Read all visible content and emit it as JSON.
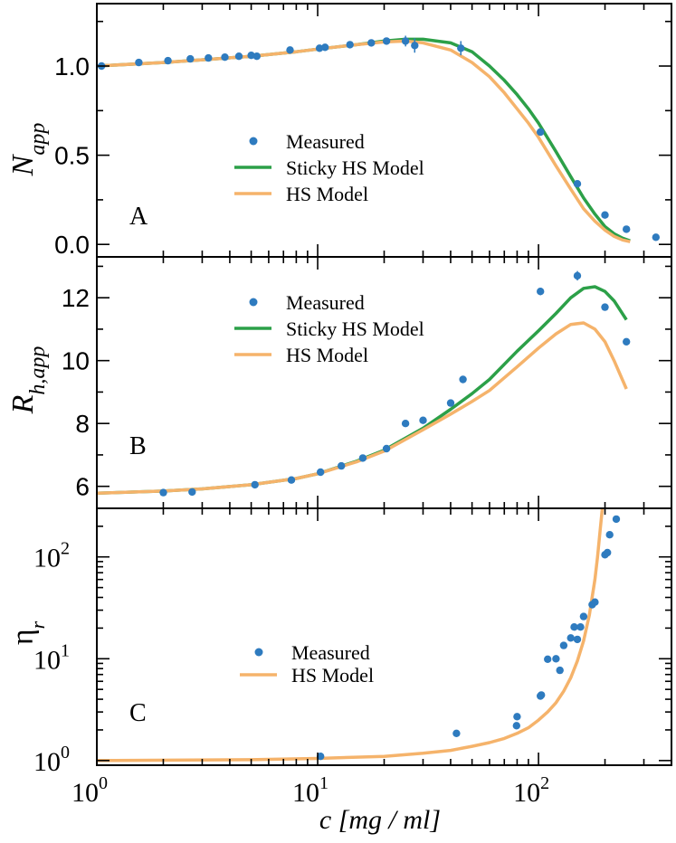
{
  "colors": {
    "measured": "#2e7bbf",
    "sticky": "#2ca048",
    "hs": "#f5b36b",
    "axis": "#000000"
  },
  "x_axis": {
    "label": "c [mg / ml]",
    "scale": "log",
    "range": [
      1,
      400
    ],
    "tick_labels": [
      {
        "base": "10",
        "exp": "0",
        "value": 1
      },
      {
        "base": "10",
        "exp": "1",
        "value": 10
      },
      {
        "base": "10",
        "exp": "2",
        "value": 100
      }
    ]
  },
  "chart_data": [
    {
      "type": "scatter",
      "panel_letter": "A",
      "ylabel": {
        "main": "N",
        "sub": "app"
      },
      "yscale": "linear",
      "ylim": [
        -0.07,
        1.35
      ],
      "yticks": [
        {
          "label": "0.0",
          "value": 0
        },
        {
          "label": "0.5",
          "value": 0.5
        },
        {
          "label": "1.0",
          "value": 1.0
        }
      ],
      "legend": {
        "position": "center",
        "items": [
          "Measured",
          "Sticky HS Model",
          "HS Model"
        ]
      },
      "series": [
        {
          "name": "Measured",
          "kind": "points",
          "x": [
            1.05,
            1.55,
            2.1,
            2.65,
            3.2,
            3.8,
            4.4,
            5.0,
            5.3,
            7.5,
            10.2,
            10.8,
            14.0,
            17.5,
            20.5,
            25.0,
            27.5,
            44.5,
            102.0,
            150.0,
            200.0,
            250.0,
            340.0
          ],
          "y": [
            1.0,
            1.02,
            1.03,
            1.04,
            1.045,
            1.05,
            1.055,
            1.06,
            1.055,
            1.09,
            1.1,
            1.105,
            1.12,
            1.13,
            1.14,
            1.14,
            1.115,
            1.1,
            0.63,
            0.34,
            0.165,
            0.085,
            0.04
          ],
          "yerr": [
            0,
            0,
            0,
            0,
            0,
            0,
            0,
            0,
            0,
            0,
            0,
            0,
            0,
            0,
            0,
            0.03,
            0.04,
            0.04,
            0.02,
            0.01,
            0,
            0,
            0
          ]
        },
        {
          "name": "Sticky HS Model",
          "kind": "line",
          "x": [
            1,
            2,
            3,
            5,
            8,
            10,
            15,
            20,
            25,
            30,
            40,
            50,
            60,
            70,
            80,
            90,
            100,
            120,
            140,
            160,
            180,
            200,
            220,
            240,
            260
          ],
          "y": [
            1.0,
            1.02,
            1.035,
            1.055,
            1.08,
            1.095,
            1.12,
            1.14,
            1.15,
            1.15,
            1.13,
            1.08,
            1.0,
            0.92,
            0.84,
            0.76,
            0.68,
            0.52,
            0.38,
            0.26,
            0.17,
            0.1,
            0.06,
            0.035,
            0.02
          ]
        },
        {
          "name": "HS Model",
          "kind": "line",
          "x": [
            1,
            2,
            3,
            5,
            8,
            10,
            15,
            20,
            25,
            30,
            40,
            50,
            60,
            70,
            80,
            90,
            100,
            120,
            140,
            160,
            180,
            200,
            220,
            240,
            260
          ],
          "y": [
            1.0,
            1.02,
            1.035,
            1.055,
            1.08,
            1.095,
            1.12,
            1.135,
            1.14,
            1.13,
            1.09,
            1.02,
            0.94,
            0.85,
            0.76,
            0.68,
            0.6,
            0.44,
            0.31,
            0.2,
            0.13,
            0.08,
            0.045,
            0.025,
            0.015
          ]
        }
      ]
    },
    {
      "type": "scatter",
      "panel_letter": "B",
      "ylabel": {
        "main": "R",
        "sub": "h,app"
      },
      "yscale": "linear",
      "ylim": [
        5.3,
        13.3
      ],
      "yticks": [
        {
          "label": "6",
          "value": 6
        },
        {
          "label": "8",
          "value": 8
        },
        {
          "label": "10",
          "value": 10
        },
        {
          "label": "12",
          "value": 12
        }
      ],
      "legend": {
        "position": "upper-center",
        "items": [
          "Measured",
          "Sticky HS Model",
          "HS Model"
        ]
      },
      "series": [
        {
          "name": "Measured",
          "kind": "points",
          "x": [
            2.0,
            2.7,
            5.2,
            7.6,
            10.3,
            12.8,
            16.0,
            20.5,
            25.0,
            30.0,
            40.0,
            45.5,
            102.0,
            150.0,
            200.0,
            250.0
          ],
          "y": [
            5.8,
            5.82,
            6.05,
            6.2,
            6.45,
            6.65,
            6.9,
            7.2,
            8.0,
            8.1,
            8.65,
            9.4,
            12.2,
            12.7,
            11.7,
            10.6
          ],
          "yerr": [
            0,
            0,
            0,
            0,
            0,
            0,
            0,
            0,
            0,
            0,
            0,
            0,
            0.12,
            0.15,
            0,
            0
          ]
        },
        {
          "name": "Sticky HS Model",
          "kind": "line",
          "x": [
            1,
            2,
            3,
            5,
            8,
            10,
            15,
            20,
            30,
            40,
            50,
            60,
            80,
            100,
            120,
            140,
            160,
            180,
            200,
            220,
            250
          ],
          "y": [
            5.78,
            5.85,
            5.92,
            6.05,
            6.25,
            6.4,
            6.8,
            7.15,
            7.85,
            8.45,
            8.95,
            9.4,
            10.3,
            10.95,
            11.5,
            12.0,
            12.3,
            12.35,
            12.2,
            11.9,
            11.3
          ]
        },
        {
          "name": "HS Model",
          "kind": "line",
          "x": [
            1,
            2,
            3,
            5,
            8,
            10,
            15,
            20,
            30,
            40,
            50,
            60,
            80,
            100,
            120,
            140,
            160,
            180,
            200,
            220,
            250
          ],
          "y": [
            5.78,
            5.85,
            5.92,
            6.05,
            6.25,
            6.4,
            6.78,
            7.12,
            7.8,
            8.3,
            8.7,
            9.05,
            9.8,
            10.4,
            10.85,
            11.15,
            11.2,
            11.0,
            10.6,
            10.0,
            9.1
          ]
        }
      ]
    },
    {
      "type": "scatter",
      "panel_letter": "C",
      "ylabel": {
        "main": "η",
        "sub": "r"
      },
      "yscale": "log",
      "ylim": [
        0.9,
        300
      ],
      "yticks": [
        {
          "base": "10",
          "exp": "0",
          "value": 1
        },
        {
          "base": "10",
          "exp": "1",
          "value": 10
        },
        {
          "base": "10",
          "exp": "2",
          "value": 100
        }
      ],
      "legend": {
        "position": "center",
        "items": [
          "Measured",
          "HS Model"
        ]
      },
      "series": [
        {
          "name": "Measured",
          "kind": "points",
          "x": [
            10.3,
            42.5,
            79.5,
            80.0,
            102.0,
            103.0,
            110.0,
            120.0,
            125.0,
            130.0,
            140.0,
            145.0,
            150.0,
            155.0,
            160.0,
            175.0,
            180.0,
            200.0,
            205.0,
            210.0,
            225.0
          ],
          "y": [
            1.1,
            1.85,
            2.2,
            2.7,
            4.3,
            4.4,
            9.9,
            10.0,
            7.7,
            13.5,
            16.0,
            20.5,
            15.5,
            20.5,
            26.0,
            34.0,
            36.0,
            105.0,
            110.0,
            165.0,
            235.0
          ]
        },
        {
          "name": "HS Model",
          "kind": "line",
          "x": [
            1,
            5,
            10,
            20,
            30,
            40,
            50,
            60,
            70,
            80,
            90,
            100,
            110,
            120,
            130,
            140,
            150,
            160,
            170,
            180,
            185,
            190,
            195
          ],
          "y": [
            1.0,
            1.02,
            1.05,
            1.1,
            1.18,
            1.26,
            1.38,
            1.5,
            1.65,
            1.85,
            2.1,
            2.5,
            3.0,
            3.7,
            4.8,
            6.5,
            9.5,
            15.0,
            27.0,
            60.0,
            100.0,
            180.0,
            320.0
          ]
        }
      ]
    }
  ]
}
